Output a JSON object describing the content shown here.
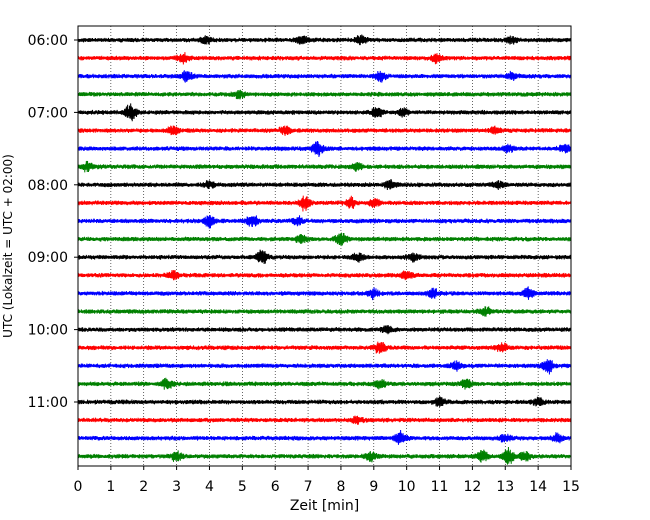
{
  "chart_data": {
    "type": "line",
    "title": "",
    "xlabel": "Zeit  [min]",
    "ylabel": "UTC (Lokalzeit = UTC + 02:00)",
    "xlim": [
      0,
      15
    ],
    "x_ticks": [
      0,
      1,
      2,
      3,
      4,
      5,
      6,
      7,
      8,
      9,
      10,
      11,
      12,
      13,
      14,
      15
    ],
    "grid": "vertical dotted at each minute",
    "traces_per_hour": 4,
    "trace_interval_minutes": 15,
    "y_tick_labels": [
      "06:00",
      "07:00",
      "08:00",
      "09:00",
      "10:00",
      "11:00"
    ],
    "color_cycle": [
      "#000000",
      "#ff0000",
      "#0000ff",
      "#008000"
    ],
    "series": [
      {
        "start": "06:00",
        "color": "#000000",
        "events": [
          [
            3.9,
            1.2
          ],
          [
            6.8,
            1.5
          ],
          [
            8.6,
            1.3
          ],
          [
            13.2,
            1.2
          ]
        ]
      },
      {
        "start": "06:15",
        "color": "#ff0000",
        "events": [
          [
            3.2,
            1.6
          ],
          [
            10.9,
            1.4
          ]
        ]
      },
      {
        "start": "06:30",
        "color": "#0000ff",
        "events": [
          [
            3.3,
            1.8
          ],
          [
            9.2,
            1.6
          ],
          [
            13.2,
            1.2
          ]
        ]
      },
      {
        "start": "06:45",
        "color": "#008000",
        "events": [
          [
            4.9,
            1.4
          ]
        ]
      },
      {
        "start": "07:00",
        "color": "#000000",
        "events": [
          [
            1.6,
            2.6
          ],
          [
            9.1,
            1.8
          ],
          [
            9.9,
            1.3
          ]
        ]
      },
      {
        "start": "07:15",
        "color": "#ff0000",
        "events": [
          [
            2.9,
            1.5
          ],
          [
            6.3,
            1.5
          ],
          [
            12.7,
            1.2
          ]
        ]
      },
      {
        "start": "07:30",
        "color": "#0000ff",
        "events": [
          [
            7.3,
            2.4
          ],
          [
            13.1,
            1.4
          ],
          [
            14.8,
            1.4
          ]
        ]
      },
      {
        "start": "07:45",
        "color": "#008000",
        "events": [
          [
            0.3,
            1.4
          ],
          [
            8.5,
            1.2
          ]
        ]
      },
      {
        "start": "08:00",
        "color": "#000000",
        "events": [
          [
            4.0,
            1.2
          ],
          [
            9.5,
            1.5
          ],
          [
            12.8,
            1.2
          ]
        ]
      },
      {
        "start": "08:15",
        "color": "#ff0000",
        "events": [
          [
            6.9,
            2.4
          ],
          [
            8.3,
            1.8
          ],
          [
            9.0,
            1.4
          ]
        ]
      },
      {
        "start": "08:30",
        "color": "#0000ff",
        "events": [
          [
            4.0,
            1.9
          ],
          [
            5.3,
            2.2
          ],
          [
            6.7,
            1.4
          ]
        ]
      },
      {
        "start": "08:45",
        "color": "#008000",
        "events": [
          [
            6.8,
            1.4
          ],
          [
            8.0,
            2.4
          ]
        ]
      },
      {
        "start": "09:00",
        "color": "#000000",
        "events": [
          [
            5.6,
            2.6
          ],
          [
            8.5,
            1.4
          ],
          [
            10.2,
            1.5
          ]
        ]
      },
      {
        "start": "09:15",
        "color": "#ff0000",
        "events": [
          [
            2.9,
            1.6
          ],
          [
            10.0,
            1.3
          ]
        ]
      },
      {
        "start": "09:30",
        "color": "#0000ff",
        "events": [
          [
            9.0,
            1.5
          ],
          [
            10.8,
            1.7
          ],
          [
            13.7,
            1.9
          ]
        ]
      },
      {
        "start": "09:45",
        "color": "#008000",
        "events": [
          [
            12.4,
            1.6
          ]
        ]
      },
      {
        "start": "10:00",
        "color": "#000000",
        "events": [
          [
            9.4,
            1.2
          ]
        ]
      },
      {
        "start": "10:15",
        "color": "#ff0000",
        "events": [
          [
            9.2,
            2.0
          ],
          [
            12.9,
            1.5
          ]
        ]
      },
      {
        "start": "10:30",
        "color": "#0000ff",
        "events": [
          [
            11.5,
            1.5
          ],
          [
            14.3,
            2.4
          ]
        ]
      },
      {
        "start": "10:45",
        "color": "#008000",
        "events": [
          [
            2.7,
            1.8
          ],
          [
            9.2,
            1.5
          ],
          [
            11.8,
            1.7
          ]
        ]
      },
      {
        "start": "11:00",
        "color": "#000000",
        "events": [
          [
            11.0,
            1.4
          ],
          [
            14.0,
            1.2
          ]
        ]
      },
      {
        "start": "11:15",
        "color": "#ff0000",
        "events": [
          [
            8.5,
            1.2
          ]
        ]
      },
      {
        "start": "11:30",
        "color": "#0000ff",
        "events": [
          [
            9.8,
            2.3
          ],
          [
            13.0,
            1.5
          ],
          [
            14.6,
            1.7
          ]
        ]
      },
      {
        "start": "11:45",
        "color": "#008000",
        "events": [
          [
            3.0,
            1.5
          ],
          [
            8.9,
            1.5
          ],
          [
            12.3,
            2.0
          ],
          [
            13.1,
            2.6
          ],
          [
            13.6,
            1.6
          ]
        ]
      }
    ]
  }
}
